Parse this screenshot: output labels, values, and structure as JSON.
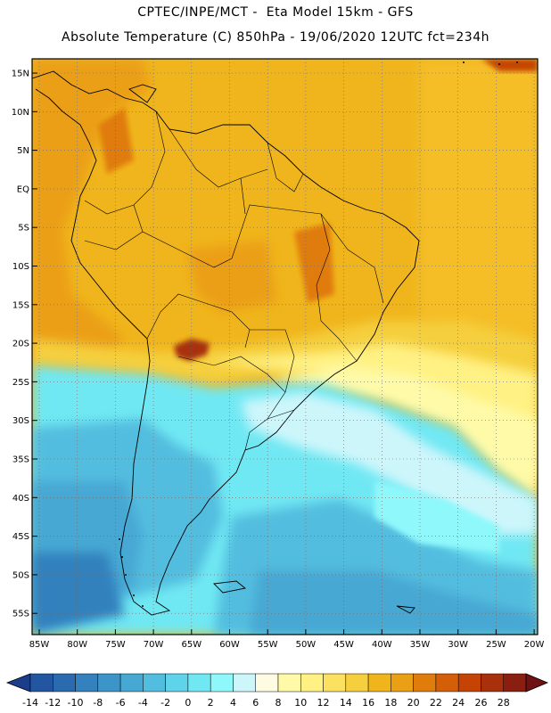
{
  "header": {
    "line1": "CPTEC/INPE/MCT -  Eta Model 15km - GFS",
    "line2": "Absolute Temperature (C) 850hPa - 19/06/2020 12UTC fct=234h"
  },
  "map": {
    "lat_labels": [
      "15N",
      "10N",
      "5N",
      "EQ",
      "5S",
      "10S",
      "15S",
      "20S",
      "25S",
      "30S",
      "35S",
      "40S",
      "45S",
      "50S",
      "55S"
    ],
    "lon_labels": [
      "85W",
      "80W",
      "75W",
      "70W",
      "65W",
      "60W",
      "55W",
      "50W",
      "45W",
      "40W",
      "35W",
      "30W",
      "25W",
      "20W"
    ],
    "region": "South America"
  },
  "colorbar": {
    "labels": [
      "-14",
      "-12",
      "-10",
      "-8",
      "-6",
      "-4",
      "-2",
      "0",
      "2",
      "4",
      "6",
      "8",
      "10",
      "12",
      "14",
      "16",
      "18",
      "20",
      "22",
      "24",
      "26",
      "28"
    ],
    "colors": [
      "#1a3e8c",
      "#2256a0",
      "#2a6aae",
      "#3381bd",
      "#3c95c8",
      "#46a8d3",
      "#52bddf",
      "#5fd3ea",
      "#6fe8f3",
      "#8ff8fb",
      "#cdf6fb",
      "#fdfbe2",
      "#fffaa8",
      "#fff183",
      "#fbe15f",
      "#f5cf3d",
      "#f0b51c",
      "#eb9f14",
      "#e07c0c",
      "#d55e08",
      "#c54405",
      "#a8300a",
      "#8a1e10",
      "#6e1214"
    ],
    "under_color": "#1a3e8c",
    "over_color": "#6e1214"
  }
}
